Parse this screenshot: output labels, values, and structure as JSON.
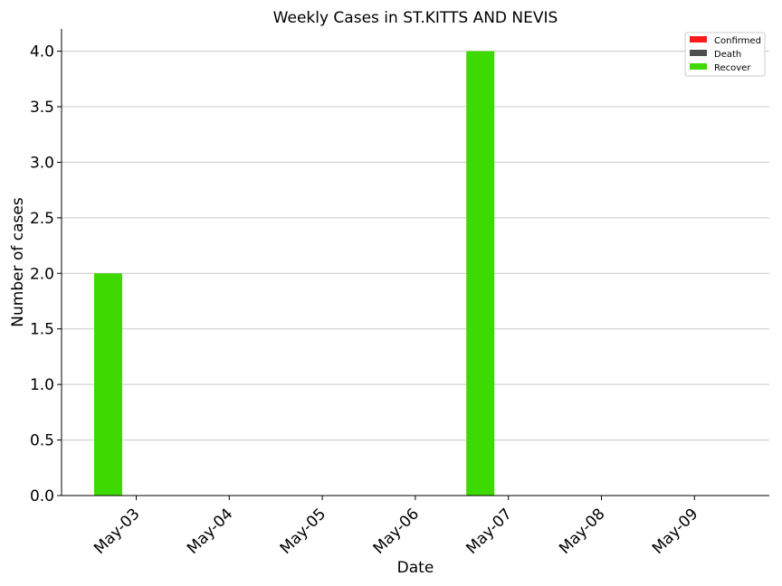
{
  "chart_data": {
    "type": "bar",
    "title": "Weekly Cases in ST.KITTS AND NEVIS",
    "xlabel": "Date",
    "ylabel": "Number of cases",
    "categories": [
      "May-03",
      "May-04",
      "May-05",
      "May-06",
      "May-07",
      "May-08",
      "May-09"
    ],
    "series": [
      {
        "name": "Confirmed",
        "color": "#ff1a1a",
        "values": [
          0,
          0,
          0,
          0,
          0,
          0,
          0
        ]
      },
      {
        "name": "Death",
        "color": "#4d4d4d",
        "values": [
          0,
          0,
          0,
          0,
          0,
          0,
          0
        ]
      },
      {
        "name": "Recover",
        "color": "#3dd900",
        "values": [
          2,
          0,
          0,
          0,
          4,
          0,
          0
        ]
      }
    ],
    "ylim": [
      0,
      4.2
    ],
    "yticks": [
      "0.0",
      "0.5",
      "1.0",
      "1.5",
      "2.0",
      "2.5",
      "3.0",
      "3.5",
      "4.0"
    ],
    "grid": true,
    "legend": "top-right"
  }
}
